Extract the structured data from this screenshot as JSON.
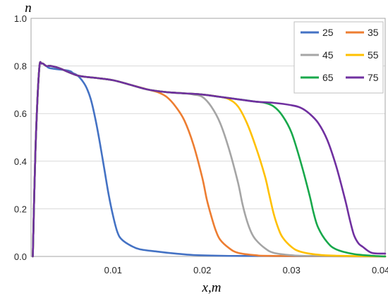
{
  "chart_data": {
    "type": "line",
    "xlabel": "x,m",
    "ylabel": "n",
    "xlim": [
      0.0008,
      0.0405
    ],
    "ylim": [
      0,
      1.0
    ],
    "x_ticks": [
      0.01,
      0.02,
      0.03,
      0.04
    ],
    "x_tick_labels": [
      "0.01",
      "0.02",
      "0.03",
      "0.04"
    ],
    "y_ticks": [
      0,
      0.2,
      0.4,
      0.6,
      0.8,
      1.0
    ],
    "y_tick_labels": [
      "0.0",
      "0.2",
      "0.4",
      "0.6",
      "0.8",
      "1.0"
    ],
    "grid": "horizontal",
    "legend_position": "top-right",
    "series": [
      {
        "name": "25",
        "color": "#4472C4",
        "points": [
          [
            0.001,
            0.0
          ],
          [
            0.0013,
            0.45
          ],
          [
            0.0017,
            0.78
          ],
          [
            0.002,
            0.81
          ],
          [
            0.0025,
            0.8
          ],
          [
            0.003,
            0.79
          ],
          [
            0.005,
            0.78
          ],
          [
            0.0055,
            0.77
          ],
          [
            0.006,
            0.76
          ],
          [
            0.0065,
            0.74
          ],
          [
            0.007,
            0.71
          ],
          [
            0.0075,
            0.66
          ],
          [
            0.008,
            0.58
          ],
          [
            0.0085,
            0.48
          ],
          [
            0.009,
            0.37
          ],
          [
            0.0095,
            0.26
          ],
          [
            0.01,
            0.17
          ],
          [
            0.0105,
            0.1
          ],
          [
            0.011,
            0.07
          ],
          [
            0.012,
            0.045
          ],
          [
            0.013,
            0.03
          ],
          [
            0.015,
            0.02
          ],
          [
            0.017,
            0.012
          ],
          [
            0.019,
            0.006
          ],
          [
            0.022,
            0.003
          ],
          [
            0.025,
            0.002
          ],
          [
            0.0405,
            0.0
          ]
        ]
      },
      {
        "name": "35",
        "color": "#ED7D31",
        "points": [
          [
            0.001,
            0.0
          ],
          [
            0.0013,
            0.45
          ],
          [
            0.0017,
            0.78
          ],
          [
            0.002,
            0.81
          ],
          [
            0.0025,
            0.8
          ],
          [
            0.003,
            0.8
          ],
          [
            0.004,
            0.79
          ],
          [
            0.006,
            0.76
          ],
          [
            0.008,
            0.75
          ],
          [
            0.01,
            0.74
          ],
          [
            0.012,
            0.72
          ],
          [
            0.014,
            0.7
          ],
          [
            0.015,
            0.69
          ],
          [
            0.016,
            0.67
          ],
          [
            0.017,
            0.63
          ],
          [
            0.018,
            0.57
          ],
          [
            0.019,
            0.47
          ],
          [
            0.02,
            0.33
          ],
          [
            0.0205,
            0.24
          ],
          [
            0.021,
            0.17
          ],
          [
            0.0215,
            0.11
          ],
          [
            0.022,
            0.07
          ],
          [
            0.023,
            0.035
          ],
          [
            0.024,
            0.015
          ],
          [
            0.026,
            0.005
          ],
          [
            0.028,
            0.002
          ],
          [
            0.0405,
            0.0
          ]
        ]
      },
      {
        "name": "45",
        "color": "#A5A5A5",
        "points": [
          [
            0.001,
            0.0
          ],
          [
            0.0013,
            0.45
          ],
          [
            0.0017,
            0.78
          ],
          [
            0.002,
            0.81
          ],
          [
            0.0025,
            0.8
          ],
          [
            0.003,
            0.8
          ],
          [
            0.004,
            0.79
          ],
          [
            0.006,
            0.76
          ],
          [
            0.008,
            0.75
          ],
          [
            0.01,
            0.74
          ],
          [
            0.012,
            0.72
          ],
          [
            0.014,
            0.7
          ],
          [
            0.016,
            0.69
          ],
          [
            0.018,
            0.685
          ],
          [
            0.019,
            0.68
          ],
          [
            0.02,
            0.67
          ],
          [
            0.021,
            0.63
          ],
          [
            0.022,
            0.56
          ],
          [
            0.023,
            0.45
          ],
          [
            0.024,
            0.31
          ],
          [
            0.0245,
            0.22
          ],
          [
            0.025,
            0.15
          ],
          [
            0.0255,
            0.1
          ],
          [
            0.026,
            0.07
          ],
          [
            0.027,
            0.035
          ],
          [
            0.028,
            0.015
          ],
          [
            0.03,
            0.005
          ],
          [
            0.032,
            0.002
          ],
          [
            0.0405,
            0.0
          ]
        ]
      },
      {
        "name": "55",
        "color": "#FFC000",
        "points": [
          [
            0.001,
            0.0
          ],
          [
            0.0013,
            0.45
          ],
          [
            0.0017,
            0.78
          ],
          [
            0.002,
            0.81
          ],
          [
            0.0025,
            0.8
          ],
          [
            0.003,
            0.8
          ],
          [
            0.004,
            0.79
          ],
          [
            0.006,
            0.76
          ],
          [
            0.008,
            0.75
          ],
          [
            0.01,
            0.74
          ],
          [
            0.012,
            0.72
          ],
          [
            0.014,
            0.7
          ],
          [
            0.016,
            0.69
          ],
          [
            0.018,
            0.685
          ],
          [
            0.02,
            0.68
          ],
          [
            0.022,
            0.67
          ],
          [
            0.023,
            0.66
          ],
          [
            0.024,
            0.63
          ],
          [
            0.025,
            0.56
          ],
          [
            0.026,
            0.46
          ],
          [
            0.027,
            0.34
          ],
          [
            0.0275,
            0.26
          ],
          [
            0.028,
            0.18
          ],
          [
            0.0285,
            0.12
          ],
          [
            0.029,
            0.08
          ],
          [
            0.03,
            0.04
          ],
          [
            0.031,
            0.02
          ],
          [
            0.033,
            0.007
          ],
          [
            0.035,
            0.003
          ],
          [
            0.0405,
            0.0
          ]
        ]
      },
      {
        "name": "65",
        "color": "#18A84B",
        "points": [
          [
            0.001,
            0.0
          ],
          [
            0.0013,
            0.45
          ],
          [
            0.0017,
            0.78
          ],
          [
            0.002,
            0.81
          ],
          [
            0.0025,
            0.8
          ],
          [
            0.003,
            0.8
          ],
          [
            0.004,
            0.79
          ],
          [
            0.006,
            0.76
          ],
          [
            0.008,
            0.75
          ],
          [
            0.01,
            0.74
          ],
          [
            0.012,
            0.72
          ],
          [
            0.014,
            0.7
          ],
          [
            0.016,
            0.69
          ],
          [
            0.018,
            0.685
          ],
          [
            0.02,
            0.68
          ],
          [
            0.022,
            0.67
          ],
          [
            0.024,
            0.66
          ],
          [
            0.026,
            0.65
          ],
          [
            0.027,
            0.645
          ],
          [
            0.028,
            0.63
          ],
          [
            0.029,
            0.59
          ],
          [
            0.03,
            0.52
          ],
          [
            0.031,
            0.4
          ],
          [
            0.032,
            0.26
          ],
          [
            0.0325,
            0.18
          ],
          [
            0.033,
            0.12
          ],
          [
            0.034,
            0.06
          ],
          [
            0.035,
            0.03
          ],
          [
            0.037,
            0.01
          ],
          [
            0.039,
            0.003
          ],
          [
            0.0405,
            0.0
          ]
        ]
      },
      {
        "name": "75",
        "color": "#7030A0",
        "points": [
          [
            0.001,
            0.0
          ],
          [
            0.0013,
            0.45
          ],
          [
            0.0017,
            0.78
          ],
          [
            0.002,
            0.81
          ],
          [
            0.0025,
            0.8
          ],
          [
            0.003,
            0.8
          ],
          [
            0.004,
            0.79
          ],
          [
            0.006,
            0.76
          ],
          [
            0.008,
            0.75
          ],
          [
            0.01,
            0.74
          ],
          [
            0.012,
            0.72
          ],
          [
            0.014,
            0.7
          ],
          [
            0.016,
            0.69
          ],
          [
            0.018,
            0.685
          ],
          [
            0.02,
            0.68
          ],
          [
            0.022,
            0.67
          ],
          [
            0.024,
            0.66
          ],
          [
            0.026,
            0.65
          ],
          [
            0.028,
            0.645
          ],
          [
            0.03,
            0.635
          ],
          [
            0.031,
            0.625
          ],
          [
            0.032,
            0.6
          ],
          [
            0.033,
            0.56
          ],
          [
            0.034,
            0.49
          ],
          [
            0.035,
            0.38
          ],
          [
            0.036,
            0.24
          ],
          [
            0.0365,
            0.16
          ],
          [
            0.037,
            0.09
          ],
          [
            0.0375,
            0.055
          ],
          [
            0.038,
            0.04
          ],
          [
            0.039,
            0.015
          ],
          [
            0.0405,
            0.012
          ]
        ]
      }
    ]
  }
}
